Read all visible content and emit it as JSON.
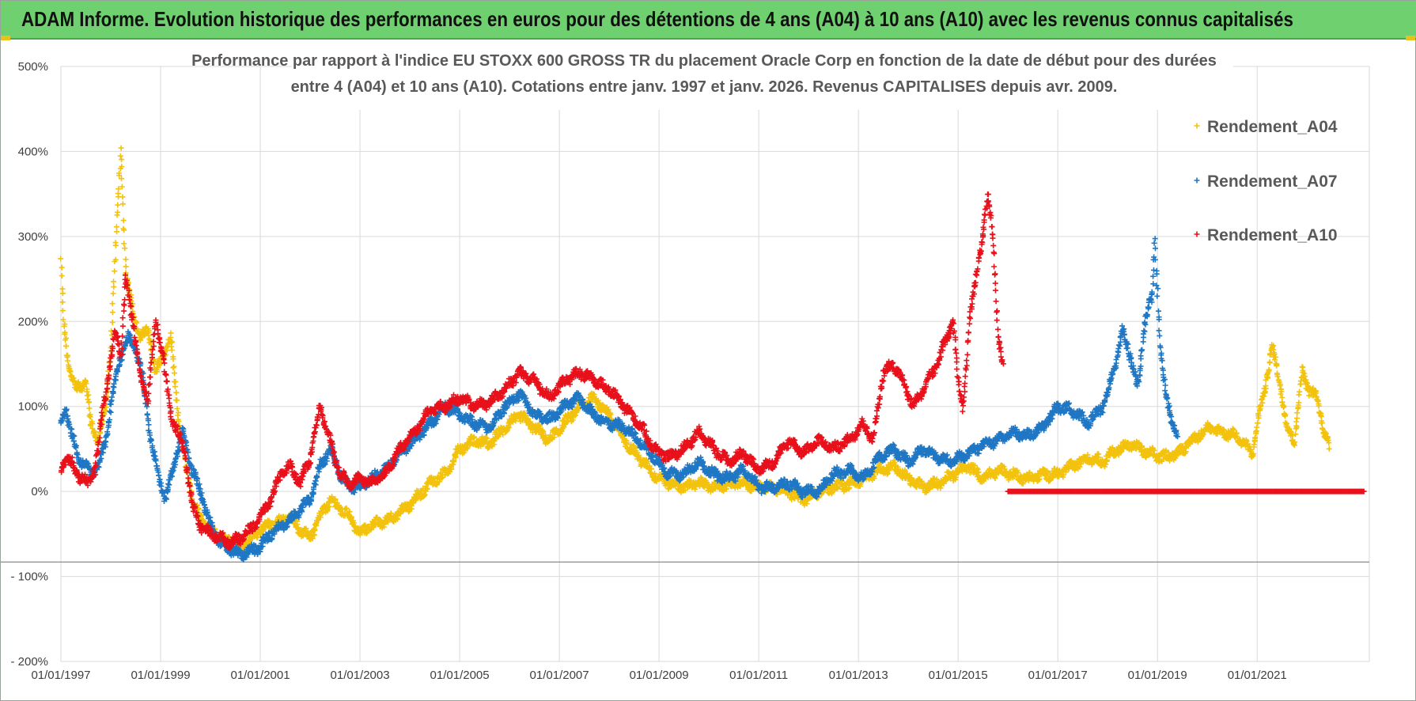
{
  "banner": {
    "title": "ADAM Informe. Evolution historique des performances en euros pour des détentions de 4 ans (A04) à 10 ans (A10) avec les revenus connus capitalisés"
  },
  "colors": {
    "banner_bg": "#6fd070",
    "grid": "#d9d9d9",
    "zero_line": "#7f7f7f",
    "A04": "#f2c20d",
    "A07": "#1f77c4",
    "A10": "#e8101a"
  },
  "chart_data": {
    "type": "scatter",
    "title": "Performance par rapport à l'indice EU STOXX 600 GROSS TR  du placement Oracle Corp en fonction de la date de début pour des durées",
    "subtitle": "entre 4 (A04) et 10 ans (A10).  Cotations entre janv. 1997 et janv. 2026. Revenus CAPITALISES  depuis avr. 2009.",
    "xlabel": "",
    "ylabel": "",
    "x_range": [
      1997.0,
      2023.25
    ],
    "ylim": [
      -200,
      500
    ],
    "y_ticks": [
      -200,
      -100,
      0,
      100,
      200,
      300,
      400,
      500
    ],
    "y_tick_labels": [
      "- 200%",
      "- 100%",
      "0%",
      "100%",
      "200%",
      "300%",
      "400%",
      "500%"
    ],
    "x_ticks": [
      1997,
      1999,
      2001,
      2003,
      2005,
      2007,
      2009,
      2011,
      2013,
      2015,
      2017,
      2019,
      2021
    ],
    "x_tick_labels": [
      "01/01/1997",
      "01/01/1999",
      "01/01/2001",
      "01/01/2003",
      "01/01/2005",
      "01/01/2007",
      "01/01/2009",
      "01/01/2011",
      "01/01/2013",
      "01/01/2015",
      "01/01/2017",
      "01/01/2019",
      "01/01/2021"
    ],
    "grid": true,
    "legend_position": "top-right",
    "series": [
      {
        "name": "Rendement_A04",
        "color": "#f2c20d",
        "x": [
          1997.0,
          1997.05,
          1997.15,
          1997.3,
          1997.5,
          1997.6,
          1997.75,
          1997.9,
          1998.0,
          1998.1,
          1998.2,
          1998.3,
          1998.45,
          1998.6,
          1998.75,
          1998.9,
          1999.05,
          1999.2,
          1999.35,
          1999.5,
          1999.65,
          1999.8,
          2000.0,
          2000.2,
          2000.4,
          2000.6,
          2000.8,
          2001.0,
          2001.2,
          2001.4,
          2001.6,
          2001.8,
          2002.0,
          2002.2,
          2002.4,
          2002.6,
          2002.8,
          2003.0,
          2003.2,
          2003.5,
          2003.8,
          2004.1,
          2004.4,
          2004.7,
          2005.0,
          2005.3,
          2005.6,
          2005.9,
          2006.2,
          2006.5,
          2006.8,
          2007.1,
          2007.4,
          2007.7,
          2008.0,
          2008.3,
          2008.6,
          2008.9,
          2009.2,
          2009.5,
          2009.8,
          2010.1,
          2010.4,
          2010.7,
          2011.0,
          2011.3,
          2011.6,
          2011.9,
          2012.2,
          2012.5,
          2012.8,
          2013.1,
          2013.4,
          2013.7,
          2014.0,
          2014.3,
          2014.6,
          2014.9,
          2015.2,
          2015.5,
          2015.8,
          2016.1,
          2016.4,
          2016.7,
          2017.0,
          2017.3,
          2017.6,
          2017.9,
          2018.2,
          2018.5,
          2018.8,
          2019.1,
          2019.4,
          2019.7,
          2020.0,
          2020.3,
          2020.6,
          2020.9,
          2021.0,
          2021.15,
          2021.3,
          2021.45,
          2021.6,
          2021.75,
          2021.9,
          2022.05,
          2022.2,
          2022.35,
          2022.45
        ],
        "values": [
          270,
          200,
          150,
          120,
          130,
          80,
          60,
          100,
          170,
          290,
          400,
          260,
          210,
          180,
          190,
          140,
          160,
          180,
          90,
          30,
          -10,
          -30,
          -45,
          -55,
          -60,
          -65,
          -55,
          -45,
          -40,
          -35,
          -30,
          -45,
          -55,
          -30,
          -10,
          -20,
          -30,
          -50,
          -40,
          -35,
          -25,
          -10,
          10,
          20,
          50,
          60,
          55,
          75,
          90,
          75,
          60,
          80,
          100,
          110,
          90,
          60,
          40,
          20,
          10,
          5,
          10,
          5,
          8,
          10,
          5,
          5,
          0,
          -10,
          0,
          5,
          8,
          15,
          25,
          30,
          15,
          5,
          10,
          20,
          30,
          15,
          25,
          20,
          15,
          20,
          20,
          30,
          40,
          35,
          50,
          55,
          45,
          40,
          45,
          60,
          75,
          70,
          65,
          45,
          80,
          120,
          170,
          130,
          75,
          60,
          140,
          120,
          110,
          70,
          50
        ]
      },
      {
        "name": "Rendement_A07",
        "color": "#1f77c4",
        "x": [
          1997.0,
          1997.1,
          1997.2,
          1997.35,
          1997.5,
          1997.6,
          1997.75,
          1997.9,
          1998.0,
          1998.1,
          1998.2,
          1998.35,
          1998.5,
          1998.65,
          1998.8,
          1998.95,
          1999.1,
          1999.3,
          1999.45,
          1999.6,
          1999.8,
          2000.0,
          2000.2,
          2000.4,
          2000.6,
          2000.8,
          2001.0,
          2001.2,
          2001.4,
          2001.6,
          2001.8,
          2002.0,
          2002.2,
          2002.4,
          2002.6,
          2002.8,
          2003.0,
          2003.2,
          2003.5,
          2003.8,
          2004.1,
          2004.4,
          2004.7,
          2005.0,
          2005.3,
          2005.6,
          2005.9,
          2006.2,
          2006.5,
          2006.8,
          2007.1,
          2007.4,
          2007.7,
          2008.0,
          2008.3,
          2008.6,
          2008.9,
          2009.2,
          2009.5,
          2009.8,
          2010.1,
          2010.4,
          2010.7,
          2011.0,
          2011.3,
          2011.6,
          2011.9,
          2012.2,
          2012.5,
          2012.8,
          2013.1,
          2013.4,
          2013.7,
          2014.0,
          2014.3,
          2014.6,
          2014.9,
          2015.2,
          2015.5,
          2015.8,
          2016.1,
          2016.4,
          2016.7,
          2017.0,
          2017.3,
          2017.6,
          2017.9,
          2018.0,
          2018.15,
          2018.3,
          2018.45,
          2018.6,
          2018.75,
          2018.9,
          2018.95,
          2019.05,
          2019.15,
          2019.3,
          2019.4
        ],
        "values": [
          80,
          100,
          70,
          40,
          30,
          20,
          30,
          60,
          100,
          130,
          160,
          180,
          170,
          130,
          60,
          20,
          -10,
          40,
          70,
          30,
          0,
          -40,
          -60,
          -70,
          -75,
          -70,
          -65,
          -50,
          -40,
          -35,
          -20,
          -10,
          30,
          50,
          20,
          5,
          5,
          15,
          25,
          45,
          60,
          80,
          100,
          90,
          80,
          75,
          100,
          115,
          90,
          85,
          100,
          110,
          90,
          80,
          75,
          60,
          40,
          20,
          20,
          35,
          20,
          15,
          25,
          5,
          5,
          10,
          0,
          0,
          20,
          25,
          15,
          40,
          50,
          35,
          50,
          40,
          35,
          45,
          55,
          60,
          70,
          65,
          75,
          100,
          95,
          80,
          100,
          115,
          150,
          190,
          160,
          120,
          200,
          230,
          300,
          170,
          120,
          80,
          60
        ]
      },
      {
        "name": "Rendement_A10",
        "color": "#e8101a",
        "x": [
          1997.0,
          1997.1,
          1997.25,
          1997.4,
          1997.55,
          1997.7,
          1997.85,
          1998.0,
          1998.1,
          1998.2,
          1998.3,
          1998.45,
          1998.6,
          1998.75,
          1998.9,
          1999.05,
          1999.2,
          1999.35,
          1999.5,
          1999.65,
          1999.8,
          2000.0,
          2000.2,
          2000.4,
          2000.6,
          2000.8,
          2001.0,
          2001.2,
          2001.4,
          2001.6,
          2001.8,
          2002.0,
          2002.2,
          2002.4,
          2002.6,
          2002.8,
          2003.0,
          2003.2,
          2003.5,
          2003.8,
          2004.1,
          2004.4,
          2004.7,
          2005.0,
          2005.3,
          2005.6,
          2005.9,
          2006.2,
          2006.5,
          2006.8,
          2007.1,
          2007.4,
          2007.7,
          2008.0,
          2008.3,
          2008.6,
          2008.9,
          2009.2,
          2009.5,
          2009.8,
          2010.1,
          2010.4,
          2010.7,
          2011.0,
          2011.3,
          2011.6,
          2011.9,
          2012.2,
          2012.5,
          2012.8,
          2013.1,
          2013.3,
          2013.5,
          2013.7,
          2013.9,
          2014.1,
          2014.3,
          2014.5,
          2014.7,
          2014.9,
          2015.0,
          2015.1,
          2015.25,
          2015.4,
          2015.5,
          2015.6,
          2015.7,
          2015.8,
          2015.9
        ],
        "values": [
          25,
          40,
          30,
          15,
          10,
          30,
          100,
          150,
          190,
          160,
          250,
          200,
          130,
          110,
          200,
          160,
          90,
          70,
          40,
          -20,
          -40,
          -50,
          -55,
          -60,
          -55,
          -45,
          -30,
          -10,
          20,
          30,
          10,
          40,
          100,
          60,
          20,
          10,
          15,
          10,
          20,
          50,
          70,
          95,
          100,
          110,
          100,
          105,
          120,
          140,
          130,
          110,
          130,
          140,
          130,
          120,
          100,
          80,
          50,
          40,
          50,
          70,
          50,
          35,
          45,
          25,
          35,
          60,
          45,
          60,
          50,
          60,
          80,
          60,
          140,
          150,
          130,
          100,
          120,
          140,
          170,
          200,
          130,
          100,
          210,
          270,
          300,
          350,
          300,
          180,
          150
        ]
      }
    ],
    "zero_band": {
      "name": "Rendement_A10 zero segment",
      "from_x": 2016.0,
      "to_x": 2023.15,
      "value": 0
    }
  },
  "legend": [
    {
      "label": "Rendement_A04",
      "color": "#f2c20d"
    },
    {
      "label": "Rendement_A07",
      "color": "#1f77c4"
    },
    {
      "label": "Rendement_A10",
      "color": "#e8101a"
    }
  ]
}
